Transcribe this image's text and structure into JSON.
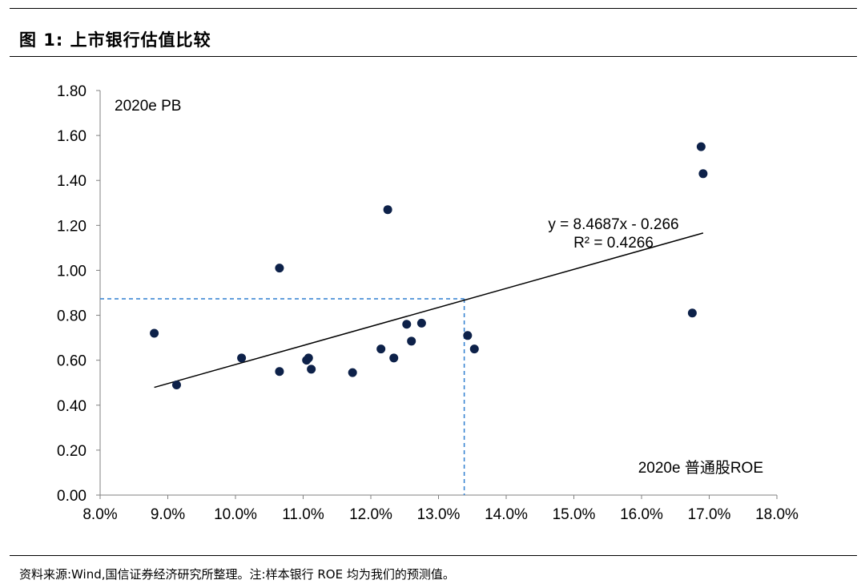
{
  "figure_title": "图 1:  上市银行估值比较",
  "source_note": "资料来源:Wind,国信证券经济研究所整理。注:样本银行 ROE 均为我们的预测值。",
  "colors": {
    "points": "#0d2149",
    "trendline": "#000000",
    "reference": "#2f7fd0"
  },
  "chart_data": {
    "type": "scatter",
    "y_label_inside": "2020e PB",
    "x_label_inside": "2020e 普通股ROE",
    "xlim": [
      0.08,
      0.18
    ],
    "ylim": [
      0,
      1.8
    ],
    "x_ticks": [
      "8.0%",
      "9.0%",
      "10.0%",
      "11.0%",
      "12.0%",
      "13.0%",
      "14.0%",
      "15.0%",
      "16.0%",
      "17.0%",
      "18.0%"
    ],
    "y_ticks": [
      "0.00",
      "0.20",
      "0.40",
      "0.60",
      "0.80",
      "1.00",
      "1.20",
      "1.40",
      "1.60",
      "1.80"
    ],
    "points": [
      {
        "x": 0.088,
        "y": 0.72
      },
      {
        "x": 0.0913,
        "y": 0.49
      },
      {
        "x": 0.1009,
        "y": 0.61
      },
      {
        "x": 0.1065,
        "y": 0.55
      },
      {
        "x": 0.1065,
        "y": 1.01
      },
      {
        "x": 0.1105,
        "y": 0.6
      },
      {
        "x": 0.1108,
        "y": 0.61
      },
      {
        "x": 0.1112,
        "y": 0.56
      },
      {
        "x": 0.1173,
        "y": 0.545
      },
      {
        "x": 0.1215,
        "y": 0.65
      },
      {
        "x": 0.1225,
        "y": 1.27
      },
      {
        "x": 0.1234,
        "y": 0.61
      },
      {
        "x": 0.1253,
        "y": 0.76
      },
      {
        "x": 0.126,
        "y": 0.685
      },
      {
        "x": 0.1275,
        "y": 0.765
      },
      {
        "x": 0.1343,
        "y": 0.71
      },
      {
        "x": 0.1353,
        "y": 0.65
      },
      {
        "x": 0.1675,
        "y": 0.81
      },
      {
        "x": 0.1688,
        "y": 1.55
      },
      {
        "x": 0.1691,
        "y": 1.43
      }
    ],
    "trendline": {
      "slope": 8.4687,
      "intercept": -0.266,
      "x_range": [
        0.088,
        0.1691
      ],
      "equation": "y = 8.4687x - 0.266",
      "r_squared": "R² = 0.4266"
    },
    "reference": {
      "x": 0.1338,
      "y": 0.8731
    },
    "grid": false,
    "legend": "none"
  }
}
